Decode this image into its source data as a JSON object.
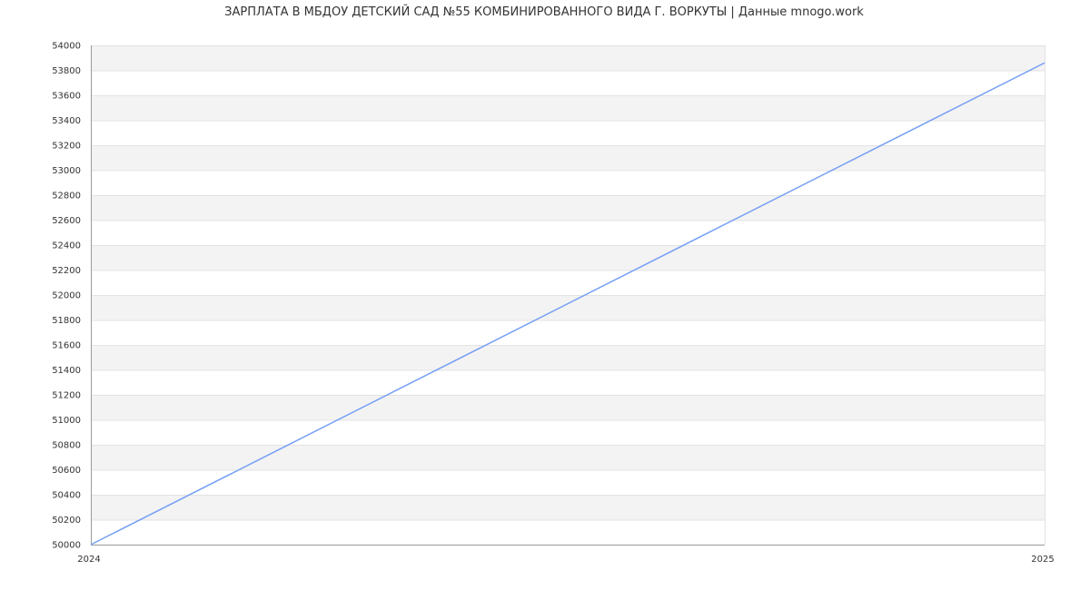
{
  "chart_data": {
    "type": "line",
    "title": "ЗАРПЛАТА В МБДОУ ДЕТСКИЙ САД №55 КОМБИНИРОВАННОГО ВИДА Г. ВОРКУТЫ | Данные mnogo.work",
    "xlabel": "",
    "ylabel": "",
    "x": [
      "2024",
      "2025"
    ],
    "series": [
      {
        "values": [
          50000,
          53860
        ]
      }
    ],
    "ylim": [
      50000,
      54000
    ],
    "ytick_step": 200,
    "grid": true,
    "line_color": "#759ff5",
    "band_color": "#f3f3f3"
  }
}
